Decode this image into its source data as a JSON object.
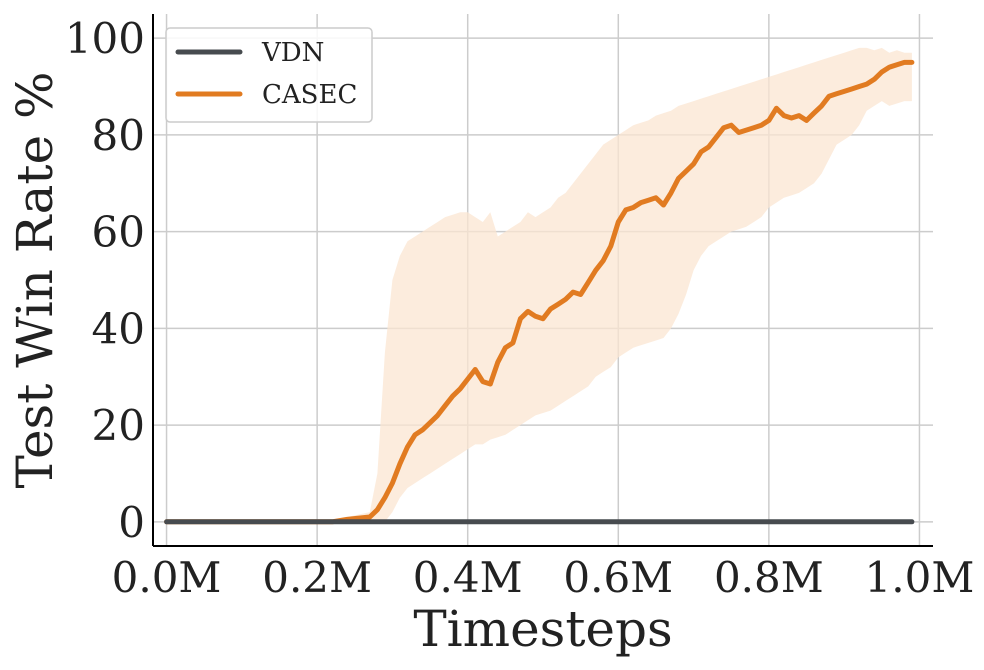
{
  "chart_data": {
    "type": "line",
    "xlabel": "Timesteps",
    "ylabel": "Test Win Rate %",
    "xlim": [
      0,
      1.0
    ],
    "ylim": [
      -5,
      105
    ],
    "x_unit": "M",
    "x_ticks": [
      0.0,
      0.2,
      0.4,
      0.6,
      0.8,
      1.0
    ],
    "x_tick_labels": [
      "0.0M",
      "0.2M",
      "0.4M",
      "0.6M",
      "0.8M",
      "1.0M"
    ],
    "y_ticks": [
      0,
      20,
      40,
      60,
      80,
      100
    ],
    "y_tick_labels": [
      "0",
      "20",
      "40",
      "60",
      "80",
      "100"
    ],
    "grid": true,
    "legend": {
      "position": "top-left",
      "entries": [
        "VDN",
        "CASEC"
      ]
    },
    "series": [
      {
        "name": "VDN",
        "color": "#474b4f",
        "x": [
          0.0,
          0.99
        ],
        "y": [
          0,
          0
        ]
      },
      {
        "name": "CASEC",
        "color": "#e17b21",
        "band_color": "#fbe6d2",
        "x": [
          0.0,
          0.22,
          0.24,
          0.27,
          0.28,
          0.29,
          0.3,
          0.31,
          0.32,
          0.33,
          0.34,
          0.35,
          0.36,
          0.37,
          0.38,
          0.39,
          0.4,
          0.41,
          0.42,
          0.43,
          0.44,
          0.45,
          0.46,
          0.47,
          0.48,
          0.49,
          0.5,
          0.51,
          0.52,
          0.53,
          0.54,
          0.55,
          0.56,
          0.57,
          0.58,
          0.59,
          0.6,
          0.61,
          0.62,
          0.63,
          0.64,
          0.65,
          0.66,
          0.67,
          0.68,
          0.69,
          0.7,
          0.71,
          0.72,
          0.73,
          0.74,
          0.75,
          0.76,
          0.77,
          0.78,
          0.79,
          0.8,
          0.81,
          0.82,
          0.83,
          0.84,
          0.85,
          0.86,
          0.87,
          0.88,
          0.89,
          0.9,
          0.91,
          0.92,
          0.93,
          0.94,
          0.95,
          0.96,
          0.97,
          0.98,
          0.99
        ],
        "y": [
          0,
          0,
          0.5,
          1,
          2.5,
          5,
          8,
          12,
          15.5,
          18,
          19,
          20.5,
          22,
          24,
          26,
          27.5,
          29.5,
          31.5,
          29,
          28.5,
          33,
          36,
          37,
          42,
          43.5,
          42.5,
          42,
          44,
          45,
          46,
          47.5,
          47,
          49.5,
          52,
          54,
          57,
          62,
          64.5,
          65,
          66,
          66.5,
          67,
          65.5,
          68,
          71,
          72.5,
          74,
          76.5,
          77.5,
          79.5,
          81.5,
          82,
          80.5,
          81,
          81.5,
          82,
          83,
          85.5,
          84,
          83.5,
          84,
          83,
          84.5,
          86,
          88,
          88.5,
          89,
          89.5,
          90,
          90.5,
          91.5,
          93,
          94,
          94.5,
          95,
          95
        ],
        "lower": [
          0,
          0,
          0,
          0,
          0,
          0,
          2,
          5,
          7,
          8,
          9,
          10,
          11,
          12,
          13,
          14,
          15,
          16,
          16,
          17,
          17.5,
          18,
          19,
          20,
          21,
          22,
          22.5,
          23,
          24,
          25,
          26,
          27,
          28,
          30,
          31,
          32,
          34,
          35,
          36,
          36.5,
          37,
          37.5,
          38,
          40,
          43,
          47,
          52,
          55,
          57,
          58,
          59,
          60,
          60.5,
          61,
          62,
          63,
          65,
          66,
          67,
          67.5,
          68,
          69,
          70,
          72,
          75,
          78,
          79,
          80,
          82,
          85,
          86,
          87,
          86,
          86.5,
          87,
          87
        ],
        "upper": [
          0,
          0,
          1,
          2,
          10,
          35,
          50,
          55,
          58,
          59,
          60,
          61,
          62,
          63,
          63.5,
          64,
          64,
          63,
          62,
          64,
          59,
          60,
          61,
          62,
          64,
          63,
          64,
          65,
          67,
          68,
          70,
          72,
          74,
          76,
          78,
          79,
          80,
          81,
          82,
          82.5,
          83,
          84,
          84.5,
          85,
          86,
          86.5,
          87,
          87.5,
          88,
          88.5,
          89,
          89.5,
          90,
          90.5,
          91,
          91.5,
          92,
          92.5,
          93,
          93.5,
          94,
          94.5,
          95,
          95.5,
          96,
          96.5,
          97,
          97.5,
          98,
          98,
          97.5,
          98,
          97,
          97.5,
          97,
          97
        ]
      }
    ]
  }
}
